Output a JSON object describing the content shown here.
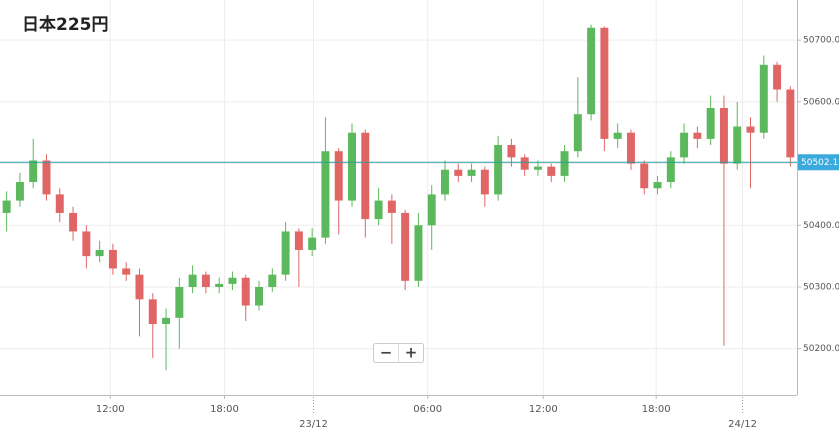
{
  "chart_data": {
    "type": "candlestick",
    "title": "日本225円",
    "open": [
      50420,
      50440,
      50470,
      50505,
      50450,
      50420,
      50390,
      50350,
      50360,
      50330,
      50320,
      50280,
      50240,
      50250,
      50300,
      50320,
      50300,
      50305,
      50315,
      50270,
      50300,
      50320,
      50390,
      50360,
      50380,
      50520,
      50440,
      50550,
      50410,
      50440,
      50420,
      50310,
      50400,
      50450,
      50490,
      50480,
      50490,
      50450,
      50530,
      50510,
      50490,
      50495,
      50480,
      50520,
      50580,
      50720,
      50540,
      50550,
      50500,
      50460,
      50470,
      50510,
      50550,
      50540,
      50590,
      50500,
      50560,
      50550,
      50660,
      50620
    ],
    "high": [
      50455,
      50485,
      50540,
      50515,
      50460,
      50430,
      50400,
      50375,
      50370,
      50340,
      50330,
      50290,
      50265,
      50315,
      50335,
      50325,
      50315,
      50325,
      50320,
      50310,
      50330,
      50405,
      50395,
      50395,
      50575,
      50525,
      50565,
      50555,
      50460,
      50450,
      50425,
      50420,
      50465,
      50505,
      50500,
      50500,
      50495,
      50545,
      50540,
      50515,
      50505,
      50500,
      50530,
      50640,
      50725,
      50722,
      50565,
      50555,
      50505,
      50480,
      50520,
      50565,
      50560,
      50610,
      50610,
      50600,
      50575,
      50675,
      50665,
      50625
    ],
    "low": [
      50390,
      50430,
      50460,
      50440,
      50405,
      50375,
      50330,
      50340,
      50320,
      50310,
      50220,
      50185,
      50165,
      50200,
      50290,
      50290,
      50290,
      50295,
      50245,
      50262,
      50292,
      50310,
      50300,
      50350,
      50370,
      50385,
      50430,
      50380,
      50400,
      50370,
      50295,
      50300,
      50360,
      50440,
      50470,
      50470,
      50430,
      50440,
      50495,
      50480,
      50480,
      50470,
      50470,
      50510,
      50570,
      50520,
      50525,
      50490,
      50450,
      50450,
      50460,
      50500,
      50525,
      50530,
      50205,
      50490,
      50460,
      50540,
      50600,
      50495
    ],
    "close": [
      50440,
      50470,
      50505,
      50450,
      50420,
      50390,
      50350,
      50360,
      50330,
      50320,
      50280,
      50240,
      50250,
      50300,
      50320,
      50300,
      50305,
      50315,
      50270,
      50300,
      50320,
      50390,
      50360,
      50380,
      50520,
      50440,
      50550,
      50410,
      50440,
      50420,
      50310,
      50400,
      50450,
      50490,
      50480,
      50490,
      50450,
      50530,
      50510,
      50490,
      50495,
      50480,
      50520,
      50580,
      50720,
      50540,
      50550,
      50500,
      50460,
      50470,
      50510,
      50550,
      50540,
      50590,
      50500,
      50560,
      50550,
      50660,
      50620,
      50510
    ],
    "up_color": "#5cb85c",
    "down_color": "#e06666",
    "xlim": [
      -0.5,
      59.5
    ],
    "xticks": [
      {
        "value": 7.8,
        "label": "12:00"
      },
      {
        "value": 16.4,
        "label": "18:00"
      },
      {
        "value": 31.7,
        "label": "06:00"
      },
      {
        "value": 40.4,
        "label": "12:00"
      },
      {
        "value": 48.9,
        "label": "18:00"
      }
    ],
    "date_ticks": [
      {
        "value": 23.1,
        "label": "23/12"
      },
      {
        "value": 55.4,
        "label": "24/12"
      }
    ],
    "ylim": [
      50125,
      50765
    ],
    "yticks": [
      {
        "value": 50200,
        "label": "50200.0"
      },
      {
        "value": 50300,
        "label": "50300.0"
      },
      {
        "value": 50400,
        "label": "50400.0"
      },
      {
        "value": 50500,
        "label": "50500.0"
      },
      {
        "value": 50600,
        "label": "50600.0"
      },
      {
        "value": 50700,
        "label": "50700.0"
      }
    ],
    "last_price": 50502.1,
    "last_price_color": "#2a9d9d",
    "grid": true,
    "zoom_buttons": [
      "−",
      "+"
    ]
  }
}
